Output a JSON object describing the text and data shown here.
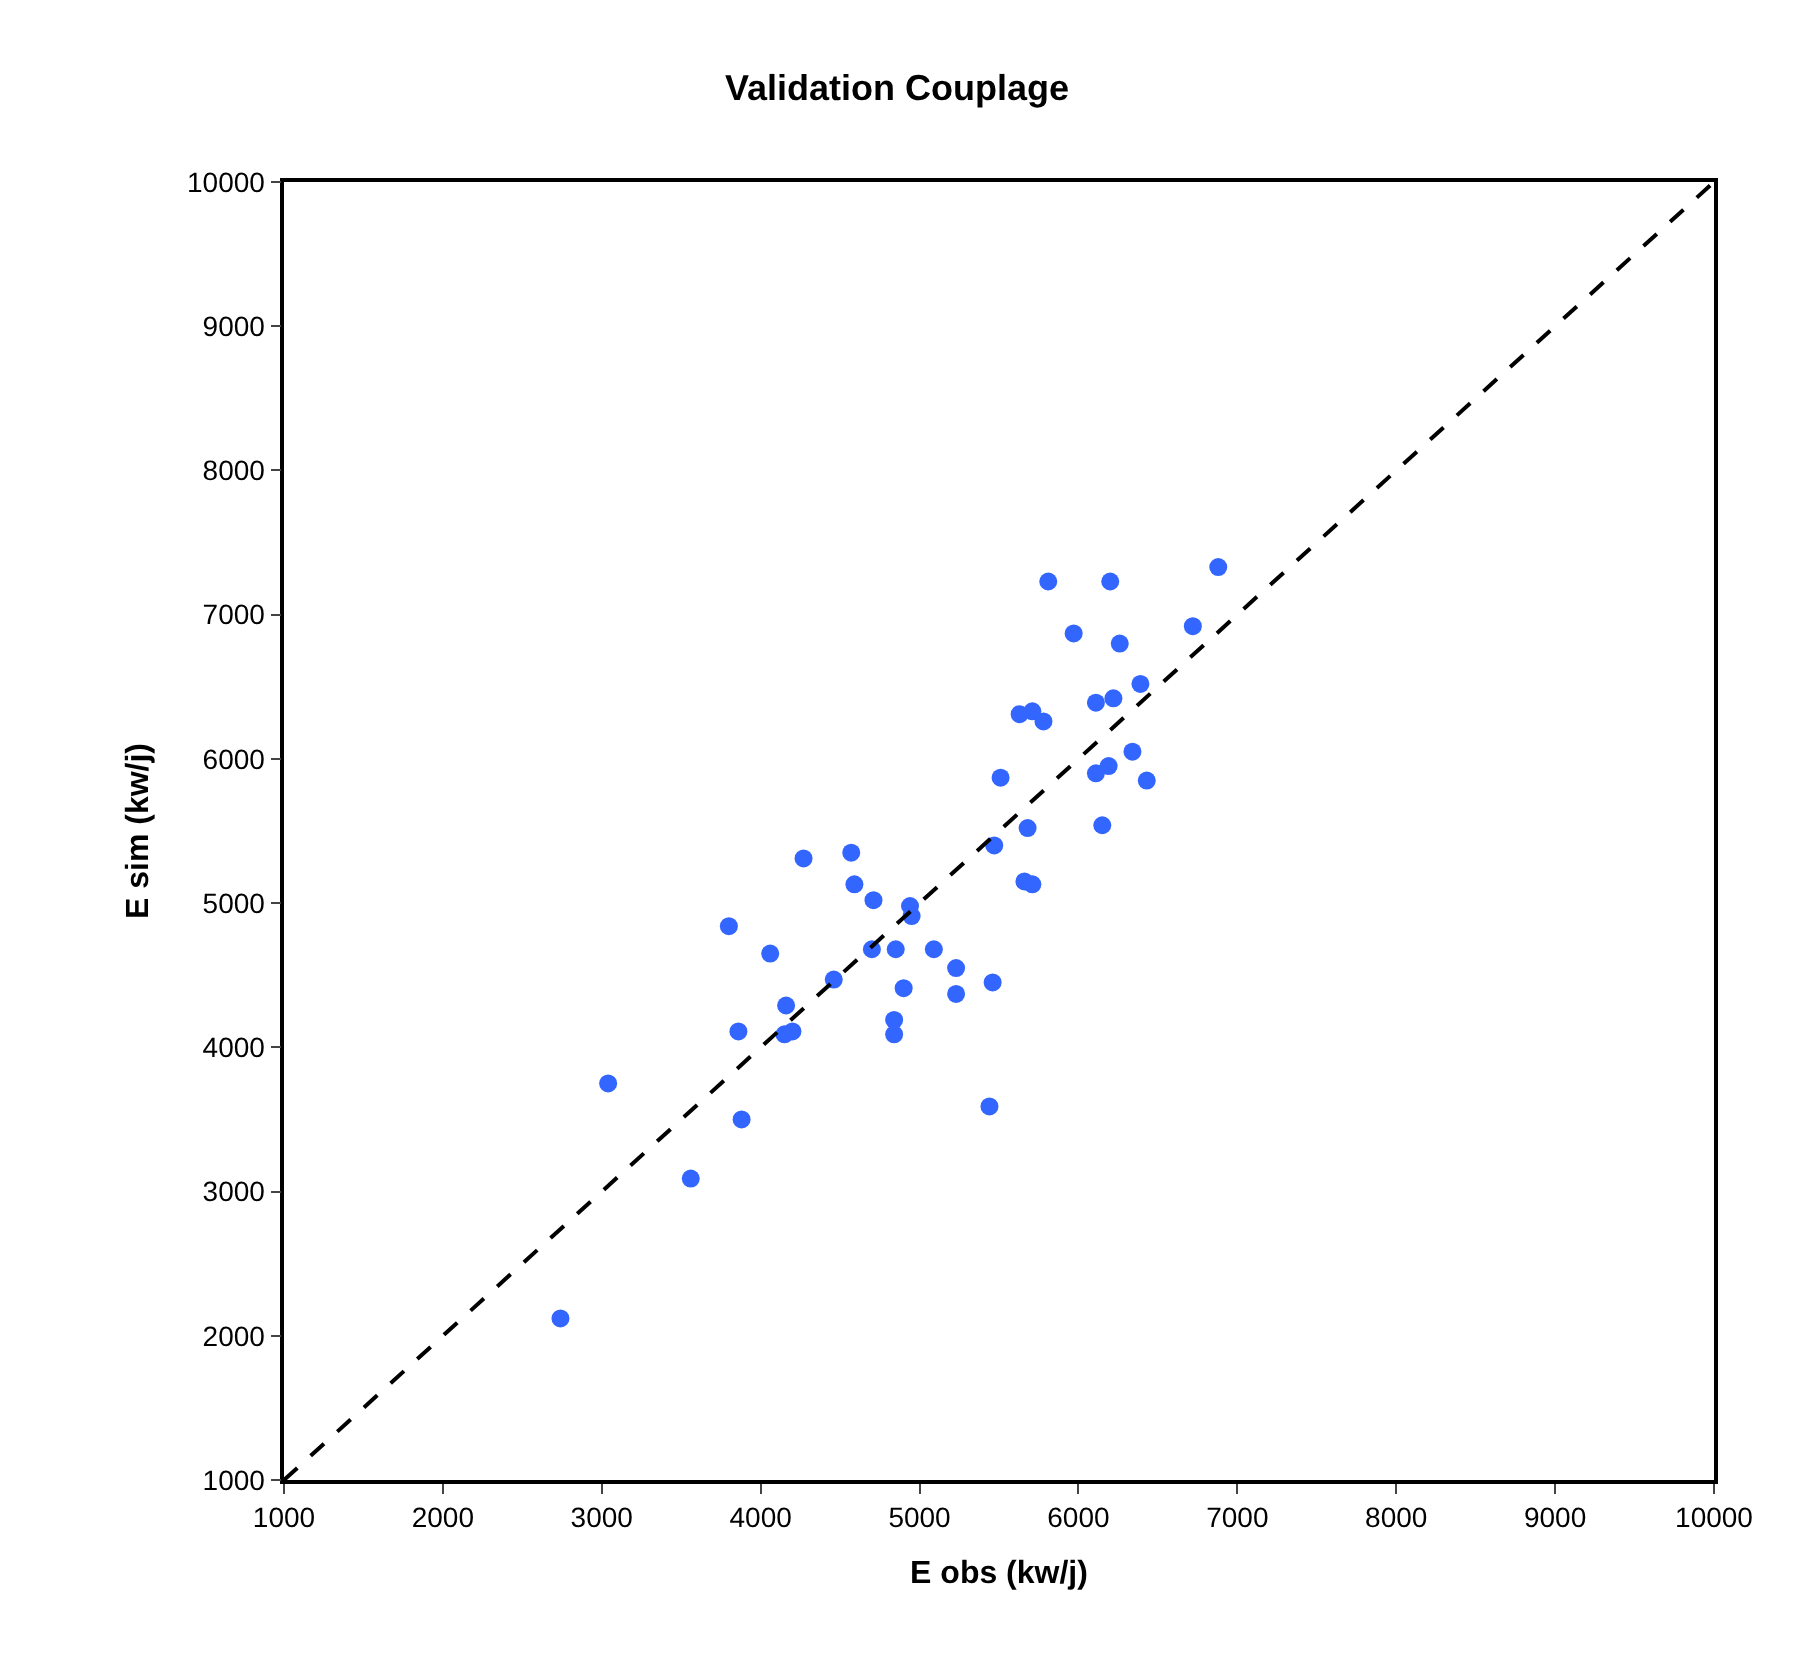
{
  "chart_data": {
    "type": "scatter",
    "title": "Validation Couplage",
    "xlabel": "E obs (kw/j)",
    "ylabel": "E sim (kw/j)",
    "xlim": [
      1000,
      10000
    ],
    "ylim": [
      1000,
      10000
    ],
    "xticks": [
      1000,
      2000,
      3000,
      4000,
      5000,
      6000,
      7000,
      8000,
      9000,
      10000
    ],
    "yticks": [
      1000,
      2000,
      3000,
      4000,
      5000,
      6000,
      7000,
      8000,
      9000,
      10000
    ],
    "grid": false,
    "legend": false,
    "marker": "circle",
    "series": [
      {
        "color": "#3366ff",
        "x": [
          2740,
          3040,
          3560,
          3880,
          3800,
          3860,
          4060,
          4160,
          4150,
          4200,
          4270,
          4460,
          4570,
          4590,
          4700,
          4710,
          4850,
          4840,
          4840,
          4900,
          4940,
          4950,
          5090,
          5230,
          5230,
          5460,
          5440,
          5470,
          5510,
          5630,
          5710,
          5780,
          5810,
          5680,
          5660,
          5710,
          5970,
          6110,
          6110,
          6150,
          6190,
          6220,
          6200,
          6260,
          6340,
          6390,
          6430,
          6720,
          6880
        ],
        "values": [
          2120,
          3750,
          3090,
          3500,
          4840,
          4110,
          4650,
          4290,
          4090,
          4110,
          5310,
          4470,
          5350,
          5130,
          4680,
          5020,
          4680,
          4190,
          4090,
          4410,
          4980,
          4910,
          4680,
          4550,
          4370,
          4450,
          3590,
          5400,
          5870,
          6310,
          6330,
          6260,
          7230,
          5520,
          5150,
          5130,
          6870,
          6390,
          5900,
          5540,
          5950,
          6420,
          7230,
          6800,
          6050,
          6520,
          5850,
          6920,
          7330
        ]
      },
      {
        "type": "line",
        "color": "#000000",
        "line_style": "dashed",
        "marker": "none",
        "x": [
          1000,
          10000
        ],
        "values": [
          1000,
          10000
        ]
      }
    ]
  }
}
